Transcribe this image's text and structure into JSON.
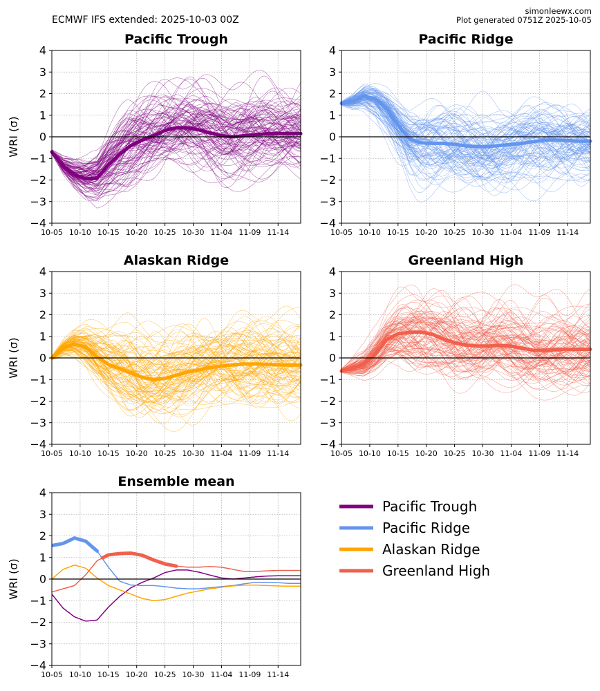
{
  "header": {
    "left_title": "ECMWF IFS extended: 2025-10-03 00Z",
    "site": "simonleewx.com",
    "generated": "Plot generated 0751Z 2025-10-05"
  },
  "colors": {
    "pacific_trough": "#800080",
    "pacific_ridge": "#6495ED",
    "alaskan_ridge": "#FFA500",
    "greenland_high": "#F0604C",
    "zero_line": "#000000",
    "grid": "#b0b0b0"
  },
  "chart_data": [
    {
      "type": "line",
      "title": "Pacific Trough",
      "ylabel": "WRI (σ)",
      "xlabel": "",
      "ylim": [
        -4,
        4
      ],
      "xlim_days": [
        0,
        44
      ],
      "grid": true,
      "xticks": [
        "10-05",
        "10-10",
        "10-15",
        "10-20",
        "10-25",
        "10-30",
        "11-04",
        "11-09",
        "11-14"
      ],
      "yticks": [
        -4,
        -3,
        -2,
        -1,
        0,
        1,
        2,
        3,
        4
      ],
      "color": "#800080",
      "ensemble_members": 100,
      "mean": {
        "x_days": [
          0,
          2,
          4,
          6,
          8,
          10,
          12,
          14,
          16,
          18,
          20,
          22,
          24,
          26,
          28,
          30,
          32,
          34,
          36,
          38,
          40,
          42,
          44
        ],
        "values": [
          -0.7,
          -1.35,
          -1.75,
          -1.95,
          -1.9,
          -1.3,
          -0.8,
          -0.4,
          -0.15,
          0.05,
          0.3,
          0.42,
          0.42,
          0.32,
          0.18,
          0.05,
          0.0,
          0.05,
          0.1,
          0.14,
          0.15,
          0.15,
          0.15
        ]
      }
    },
    {
      "type": "line",
      "title": "Pacific Ridge",
      "ylabel": "WRI (σ)",
      "xlabel": "",
      "ylim": [
        -4,
        4
      ],
      "xlim_days": [
        0,
        44
      ],
      "grid": true,
      "xticks": [
        "10-05",
        "10-10",
        "10-15",
        "10-20",
        "10-25",
        "10-30",
        "11-04",
        "11-09",
        "11-14"
      ],
      "yticks": [
        -4,
        -3,
        -2,
        -1,
        0,
        1,
        2,
        3,
        4
      ],
      "color": "#6495ED",
      "ensemble_members": 100,
      "mean": {
        "x_days": [
          0,
          2,
          4,
          6,
          8,
          10,
          12,
          14,
          16,
          18,
          20,
          22,
          24,
          26,
          28,
          30,
          32,
          34,
          36,
          38,
          40,
          42,
          44
        ],
        "values": [
          1.55,
          1.65,
          1.9,
          1.75,
          1.3,
          0.55,
          -0.1,
          -0.28,
          -0.3,
          -0.3,
          -0.35,
          -0.42,
          -0.45,
          -0.45,
          -0.4,
          -0.35,
          -0.3,
          -0.22,
          -0.15,
          -0.15,
          -0.17,
          -0.2,
          -0.2
        ]
      }
    },
    {
      "type": "line",
      "title": "Alaskan Ridge",
      "ylabel": "WRI (σ)",
      "xlabel": "",
      "ylim": [
        -4,
        4
      ],
      "xlim_days": [
        0,
        44
      ],
      "grid": true,
      "xticks": [
        "10-05",
        "10-10",
        "10-15",
        "10-20",
        "10-25",
        "10-30",
        "11-04",
        "11-09",
        "11-14"
      ],
      "yticks": [
        -4,
        -3,
        -2,
        -1,
        0,
        1,
        2,
        3,
        4
      ],
      "color": "#FFA500",
      "ensemble_members": 100,
      "mean": {
        "x_days": [
          0,
          2,
          4,
          6,
          8,
          10,
          12,
          14,
          16,
          18,
          20,
          22,
          24,
          26,
          28,
          30,
          32,
          34,
          36,
          38,
          40,
          42,
          44
        ],
        "values": [
          0.0,
          0.45,
          0.65,
          0.5,
          0.05,
          -0.3,
          -0.5,
          -0.7,
          -0.9,
          -1.0,
          -0.95,
          -0.8,
          -0.65,
          -0.55,
          -0.45,
          -0.38,
          -0.32,
          -0.28,
          -0.28,
          -0.3,
          -0.32,
          -0.33,
          -0.33
        ]
      }
    },
    {
      "type": "line",
      "title": "Greenland High",
      "ylabel": "WRI (σ)",
      "xlabel": "",
      "ylim": [
        -4,
        4
      ],
      "xlim_days": [
        0,
        44
      ],
      "grid": true,
      "xticks": [
        "10-05",
        "10-10",
        "10-15",
        "10-20",
        "10-25",
        "10-30",
        "11-04",
        "11-09",
        "11-14"
      ],
      "yticks": [
        -4,
        -3,
        -2,
        -1,
        0,
        1,
        2,
        3,
        4
      ],
      "color": "#F0604C",
      "ensemble_members": 100,
      "mean": {
        "x_days": [
          0,
          2,
          4,
          6,
          8,
          10,
          12,
          14,
          16,
          18,
          20,
          22,
          24,
          26,
          28,
          30,
          32,
          34,
          36,
          38,
          40,
          42,
          44
        ],
        "values": [
          -0.6,
          -0.45,
          -0.3,
          0.2,
          0.85,
          1.12,
          1.18,
          1.2,
          1.1,
          0.88,
          0.7,
          0.6,
          0.55,
          0.55,
          0.58,
          0.55,
          0.45,
          0.35,
          0.35,
          0.38,
          0.4,
          0.4,
          0.4
        ]
      }
    },
    {
      "type": "line",
      "title": "Ensemble mean",
      "ylabel": "WRI (σ)",
      "xlabel": "",
      "ylim": [
        -4,
        4
      ],
      "xlim_days": [
        0,
        44
      ],
      "grid": true,
      "xticks": [
        "10-05",
        "10-10",
        "10-15",
        "10-20",
        "10-25",
        "10-30",
        "11-04",
        "11-09",
        "11-14"
      ],
      "yticks": [
        -4,
        -3,
        -2,
        -1,
        0,
        1,
        2,
        3,
        4
      ],
      "note": "thick segments mark the dominant regime",
      "series": [
        {
          "name": "Pacific Trough",
          "color": "#800080",
          "dominant_days": []
        },
        {
          "name": "Pacific Ridge",
          "color": "#6495ED",
          "dominant_days": [
            0,
            8
          ]
        },
        {
          "name": "Alaskan Ridge",
          "color": "#FFA500",
          "dominant_days": []
        },
        {
          "name": "Greenland High",
          "color": "#F0604C",
          "dominant_days": [
            9,
            22
          ]
        }
      ]
    }
  ],
  "legend": [
    {
      "label": "Pacific Trough",
      "color": "#800080"
    },
    {
      "label": "Pacific Ridge",
      "color": "#6495ED"
    },
    {
      "label": "Alaskan Ridge",
      "color": "#FFA500"
    },
    {
      "label": "Greenland High",
      "color": "#F0604C"
    }
  ]
}
